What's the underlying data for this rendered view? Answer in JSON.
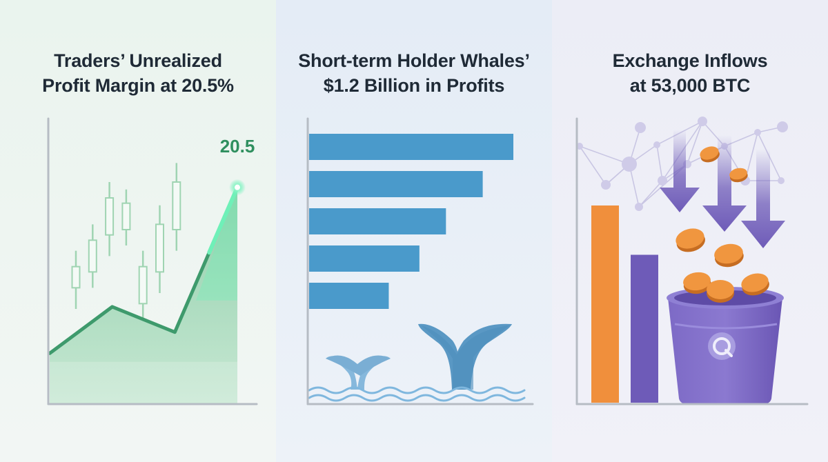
{
  "panels": [
    {
      "title_line1": "Traders’ Unrealized",
      "title_line2": "Profit Margin at 20.5%"
    },
    {
      "title_line1": "Short-term Holder Whales’",
      "title_line2": "$1.2 Billion in Profits"
    },
    {
      "title_line1": "Exchange Inflows",
      "title_line2": "at 53,000 BTC"
    }
  ],
  "colors": {
    "green": "#3e9a6c",
    "green_fill": "#8fcfa8",
    "green_glow": "#6ff0b8",
    "blue_bar": "#4a9acb",
    "whale": "#5a98c4",
    "wave": "#7fb7de",
    "orange": "#f08f3c",
    "purple": "#6e5bb8",
    "axis": "#b6bcc4"
  },
  "chart_data": [
    {
      "type": "area",
      "title": "Traders’ Unrealized Profit Margin at 20.5%",
      "x": [
        0,
        1,
        2,
        3
      ],
      "y": [
        4.8,
        9.2,
        6.8,
        20.5
      ],
      "ylim": [
        0,
        27
      ],
      "end_label": "20.5",
      "decor_candles": [
        {
          "open": 11,
          "close": 13,
          "high": 14.5,
          "low": 9
        },
        {
          "open": 12.5,
          "close": 15.5,
          "high": 17,
          "low": 11
        },
        {
          "open": 16,
          "close": 19.5,
          "high": 21,
          "low": 14
        },
        {
          "open": 16.5,
          "close": 19,
          "high": 20.3,
          "low": 15
        },
        {
          "open": 9.5,
          "close": 13,
          "high": 14.5,
          "low": 8
        },
        {
          "open": 12.5,
          "close": 17,
          "high": 18.8,
          "low": 10.5
        },
        {
          "open": 16.5,
          "close": 21,
          "high": 22.8,
          "low": 14.5
        }
      ]
    },
    {
      "type": "bar",
      "orientation": "horizontal",
      "title": "Short-term Holder Whales’ $1.2 Billion in Profits",
      "values": [
        100,
        85,
        67,
        54,
        39
      ]
    },
    {
      "type": "bar",
      "title": "Exchange Inflows at 53,000 BTC",
      "values": [
        100,
        75
      ],
      "series_colors": [
        "#f08f3c",
        "#6e5bb8"
      ]
    }
  ]
}
